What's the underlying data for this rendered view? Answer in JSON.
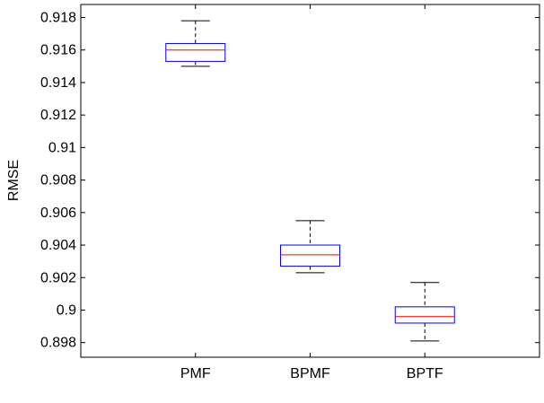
{
  "chart_data": {
    "type": "boxplot",
    "title": "",
    "xlabel": "",
    "ylabel": "RMSE",
    "categories": [
      "PMF",
      "BPMF",
      "BPTF"
    ],
    "boxes": [
      {
        "category": "PMF",
        "whisker_low": 0.915,
        "q1": 0.9153,
        "median": 0.916,
        "q3": 0.9164,
        "whisker_high": 0.9178
      },
      {
        "category": "BPMF",
        "whisker_low": 0.9023,
        "q1": 0.9027,
        "median": 0.9034,
        "q3": 0.904,
        "whisker_high": 0.9055
      },
      {
        "category": "BPTF",
        "whisker_low": 0.8981,
        "q1": 0.8992,
        "median": 0.8996,
        "q3": 0.9002,
        "whisker_high": 0.9017
      }
    ],
    "ylim": [
      0.8971,
      0.9188
    ],
    "yticks": [
      0.898,
      0.9,
      0.902,
      0.904,
      0.906,
      0.908,
      0.91,
      0.912,
      0.914,
      0.916,
      0.918
    ],
    "ytick_labels": [
      "0.898",
      "0.9",
      "0.902",
      "0.904",
      "0.906",
      "0.908",
      "0.91",
      "0.912",
      "0.914",
      "0.916",
      "0.918"
    ],
    "grid": false,
    "colors": {
      "box": "#0000ff",
      "median": "#ff0000",
      "whisker": "#000000",
      "axes": "#000000"
    }
  }
}
